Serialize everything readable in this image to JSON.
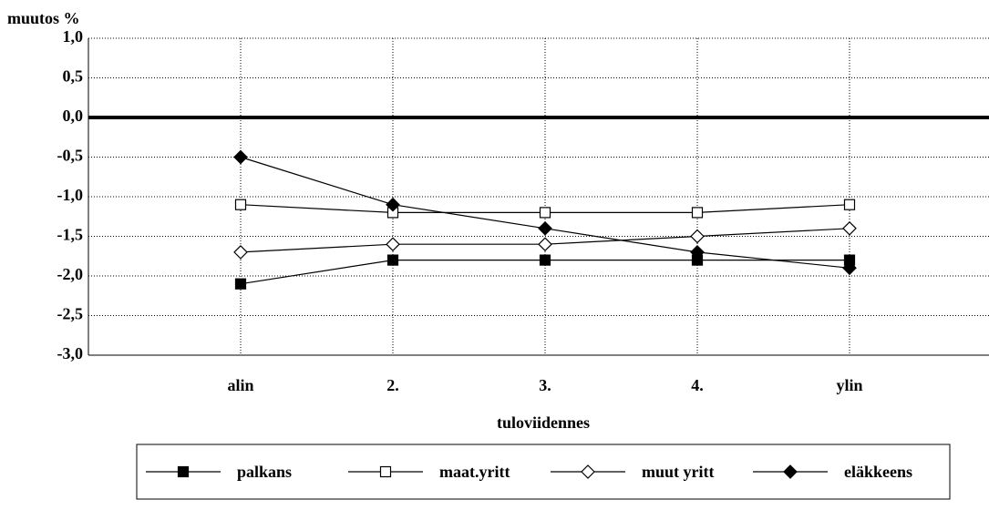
{
  "chart_data": {
    "type": "line",
    "y_label": "muutos %",
    "x_label": "tuloviidennes",
    "categories": [
      "alin",
      "2.",
      "3.",
      "4.",
      "ylin"
    ],
    "series": [
      {
        "name": "palkans",
        "color": "#000000",
        "marker": "square-filled",
        "values": [
          -2.1,
          -1.8,
          -1.8,
          -1.8,
          -1.8
        ]
      },
      {
        "name": "maat.yritt",
        "color": "#000000",
        "marker": "square-open",
        "values": [
          -1.1,
          -1.2,
          -1.2,
          -1.2,
          -1.1
        ]
      },
      {
        "name": "muut yritt",
        "color": "#000000",
        "marker": "diamond-open",
        "values": [
          -1.7,
          -1.6,
          -1.6,
          -1.5,
          -1.4
        ]
      },
      {
        "name": "eläkkeens",
        "color": "#000000",
        "marker": "diamond-filled",
        "values": [
          -0.5,
          -1.1,
          -1.4,
          -1.7,
          -1.9
        ]
      }
    ],
    "ylim": [
      -3,
      1
    ],
    "yticks": [
      {
        "value": 1,
        "label": "1,0"
      },
      {
        "value": 0.5,
        "label": "0,5"
      },
      {
        "value": 0,
        "label": "0,0"
      },
      {
        "value": -0.5,
        "label": "-0,5"
      },
      {
        "value": -1,
        "label": "-1,0"
      },
      {
        "value": -1.5,
        "label": "-1,5"
      },
      {
        "value": -2,
        "label": "-2,0"
      },
      {
        "value": -2.5,
        "label": "-2,5"
      },
      {
        "value": -3,
        "label": "-3,0"
      }
    ],
    "grid": true,
    "legend": "bottom"
  }
}
